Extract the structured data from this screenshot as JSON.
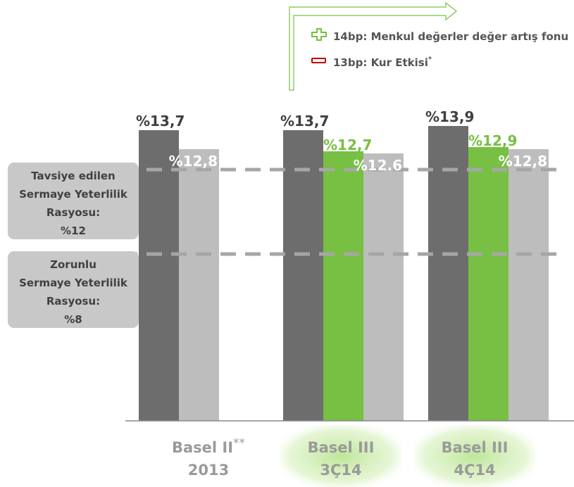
{
  "chart_data": {
    "type": "bar",
    "categories": [
      {
        "line1": "Basel II",
        "line1_suffix": "**",
        "line2": "2013",
        "highlight": false
      },
      {
        "line1": "Basel III",
        "line1_suffix": "",
        "line2": "3Ç14",
        "highlight": true
      },
      {
        "line1": "Basel III",
        "line1_suffix": "",
        "line2": "4Ç14",
        "highlight": true
      }
    ],
    "bars": [
      [
        {
          "value": 13.7,
          "label": "%13,7",
          "color": "#6d6d6d",
          "labelColor": "#404040"
        },
        {
          "value": 12.8,
          "label": "%12,8",
          "color": "#bdbdbd",
          "labelColor": "#ffffff"
        }
      ],
      [
        {
          "value": 13.7,
          "label": "%13,7",
          "color": "#6d6d6d",
          "labelColor": "#404040"
        },
        {
          "value": 12.7,
          "label": "%12,7",
          "color": "#77c043",
          "labelColor": "#77c043"
        },
        {
          "value": 12.6,
          "label": "%12.6",
          "color": "#bdbdbd",
          "labelColor": "#ffffff"
        }
      ],
      [
        {
          "value": 13.9,
          "label": "%13,9",
          "color": "#6d6d6d",
          "labelColor": "#404040"
        },
        {
          "value": 12.9,
          "label": "%12,9",
          "color": "#77c043",
          "labelColor": "#77c043"
        },
        {
          "value": 12.8,
          "label": "%12,8",
          "color": "#bdbdbd",
          "labelColor": "#ffffff"
        }
      ]
    ],
    "reference_lines": [
      {
        "value": 12,
        "lines": [
          "Tavsiye edilen",
          "Sermaye Yeterlilik",
          "Rasyosu:",
          "%12"
        ]
      },
      {
        "value": 8,
        "lines": [
          "Zorunlu",
          "Sermaye Yeterlilik",
          "Rasyosu:",
          "%8"
        ]
      }
    ],
    "legend": [
      {
        "icon": "plus-icon",
        "text": "14bp: Menkul değerler değer artış fonu",
        "color": "#77c043"
      },
      {
        "icon": "minus-icon",
        "text": "13bp: Kur Etkisi",
        "suffix": "*",
        "color": "#c00000"
      }
    ]
  },
  "colors": {
    "dark": "#6d6d6d",
    "light": "#bdbdbd",
    "green": "#77c043",
    "dashed": "#a6a6a6",
    "box": "#c8c8c8"
  }
}
